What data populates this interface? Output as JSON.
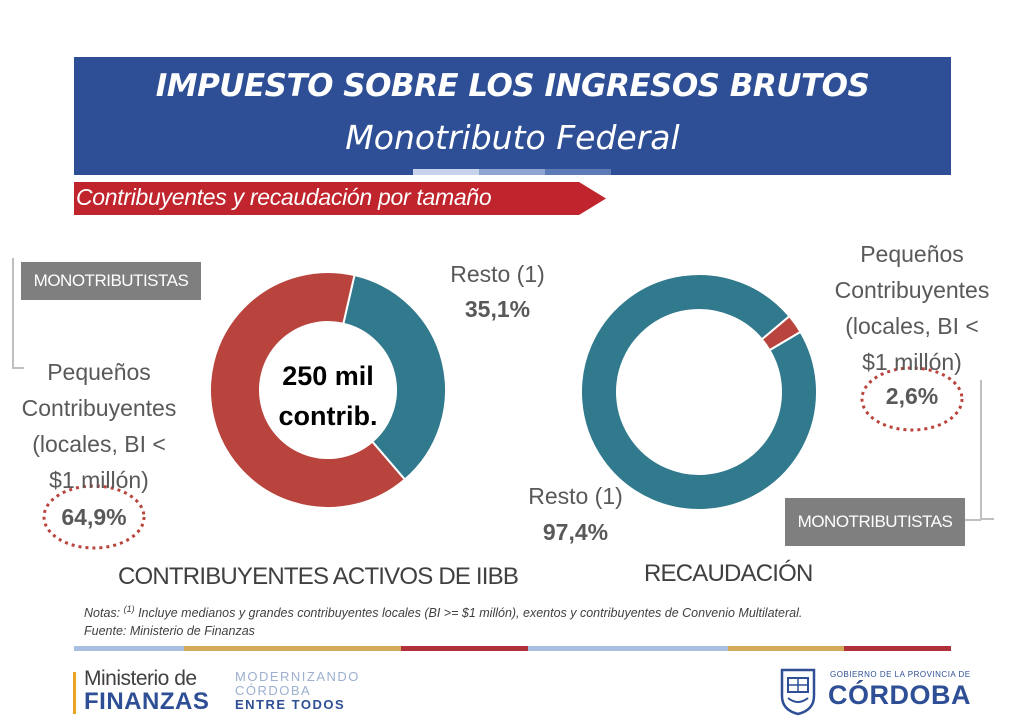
{
  "header": {
    "title": "IMPUESTO SOBRE LOS INGRESOS BRUTOS",
    "subtitle": "Monotributo Federal"
  },
  "banner": {
    "text": "Contribuyentes y recaudación por tamaño"
  },
  "colors": {
    "red": "#b9443d",
    "teal": "#31798c",
    "navy": "#2e4f95",
    "banner_red": "#c0242c",
    "tag_gray": "#7f7f7f"
  },
  "chart_data": [
    {
      "type": "pie",
      "title": "CONTRIBUYENTES ACTIVOS DE IIBB",
      "center_label": [
        "250 mil",
        "contrib."
      ],
      "tag": "MONOTRIBUTISTAS",
      "slices": [
        {
          "label": "Resto (1)",
          "value": 35.1,
          "value_label": "35,1%",
          "color": "#31798c"
        },
        {
          "label": "Pequeños Contribuyentes (locales, BI < $1 millón)",
          "label_lines": [
            "Pequeños",
            "Contribuyentes",
            "(locales, BI <",
            "$1 millón)"
          ],
          "value": 64.9,
          "value_label": "64,9%",
          "color": "#b9443d"
        }
      ]
    },
    {
      "type": "pie",
      "title": "RECAUDACIÓN",
      "tag": "MONOTRIBUTISTAS",
      "slices": [
        {
          "label": "Pequeños Contribuyentes (locales, BI < $1 millón)",
          "label_lines": [
            "Pequeños",
            "Contribuyentes",
            "(locales, BI <",
            "$1 millón)"
          ],
          "value": 2.6,
          "value_label": "2,6%",
          "color": "#b9443d"
        },
        {
          "label": "Resto (1)",
          "value": 97.4,
          "value_label": "97,4%",
          "color": "#31798c"
        }
      ]
    }
  ],
  "notes": {
    "prefix": "Notas: ",
    "marker": "(1)",
    "line1": " Incluye medianos y grandes contribuyentes locales (BI >= $1 millón), exentos y contribuyentes de Convenio Multilateral.",
    "line2": "Fuente: Ministerio de Finanzas"
  },
  "footer": {
    "ministry_line1": "Ministerio de",
    "ministry_line2": "FINANZAS",
    "modern_line1": "MODERNIZANDO",
    "modern_line2": "CÓRDOBA",
    "modern_line3": "ENTRE TODOS",
    "gov_small": "GOBIERNO DE LA PROVINCIA DE",
    "gov_big": "CÓRDOBA",
    "stripe_colors": [
      "#a9bfe0",
      "#d1aa5a",
      "#b0313a",
      "#a9bfe0",
      "#d1aa5a",
      "#b0313a"
    ]
  }
}
